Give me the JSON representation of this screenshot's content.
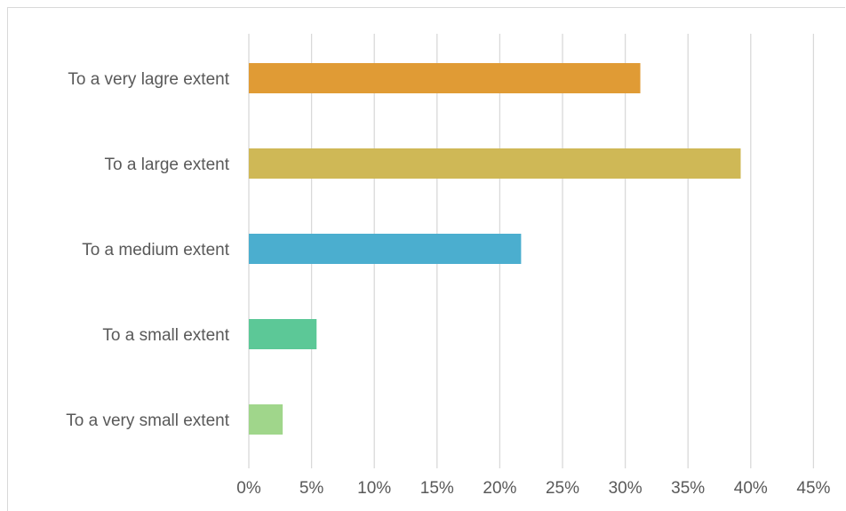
{
  "chart_data": {
    "type": "bar",
    "orientation": "horizontal",
    "title": "",
    "xlabel": "",
    "ylabel": "",
    "categories": [
      "To a very lagre extent",
      "To a large extent",
      "To a medium extent",
      "To a small extent",
      "To a very small extent"
    ],
    "values": [
      31.2,
      39.2,
      21.7,
      5.4,
      2.7
    ],
    "colors": [
      "#E09B35",
      "#CFB856",
      "#4BAECF",
      "#5CC897",
      "#A0D68B"
    ],
    "xlim": [
      0,
      45
    ],
    "xticks": [
      0,
      5,
      10,
      15,
      20,
      25,
      30,
      35,
      40,
      45
    ],
    "tick_labels": [
      "0%",
      "5%",
      "10%",
      "15%",
      "20%",
      "25%",
      "30%",
      "35%",
      "40%",
      "45%"
    ],
    "grid": "vertical",
    "legend": "none"
  }
}
